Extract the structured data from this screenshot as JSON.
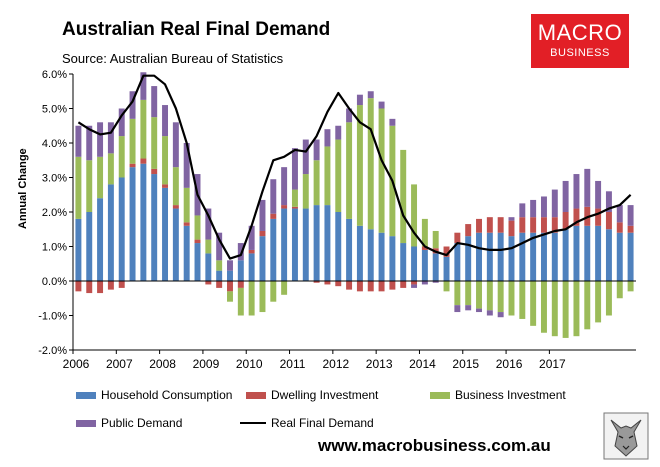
{
  "header": {
    "title": "Australian Real Final Demand",
    "subtitle": "Source: Australian Bureau of Statistics"
  },
  "logo": {
    "line1": "MACRO",
    "line2": "BUSINESS",
    "color": "#e21f26"
  },
  "footer": {
    "website": "www.macrobusiness.com.au"
  },
  "chart_data": {
    "type": "bar",
    "stacked": true,
    "title": "Australian Real Final Demand",
    "subtitle": "Source: Australian Bureau of Statistics",
    "xlabel": "",
    "ylabel": "Annual Change",
    "ylim": [
      -2.0,
      6.0
    ],
    "yticks": [
      "-2.0%",
      "-1.0%",
      "0.0%",
      "1.0%",
      "2.0%",
      "3.0%",
      "4.0%",
      "5.0%",
      "6.0%"
    ],
    "ytick_values": [
      -2,
      -1,
      0,
      1,
      2,
      3,
      4,
      5,
      6
    ],
    "xticks": [
      "2006",
      "2007",
      "2008",
      "2009",
      "2010",
      "2011",
      "2012",
      "2013",
      "2014",
      "2015",
      "2016",
      "2017"
    ],
    "x_start": "2006 Q1",
    "grid": false,
    "legend_position": "bottom",
    "colors": {
      "household": "#4f81bd",
      "dwelling": "#c0504d",
      "business": "#9bbb59",
      "public": "#8064a2",
      "total": "#000000"
    },
    "series": [
      {
        "name": "Household Consumption",
        "key": "household",
        "kind": "bar",
        "values": [
          1.8,
          2.0,
          2.4,
          2.8,
          3.0,
          3.3,
          3.4,
          3.1,
          2.7,
          2.1,
          1.6,
          1.1,
          0.8,
          0.3,
          0.3,
          0.6,
          0.8,
          1.3,
          1.8,
          2.1,
          2.1,
          2.1,
          2.2,
          2.2,
          2.0,
          1.8,
          1.6,
          1.5,
          1.4,
          1.3,
          1.1,
          1.0,
          0.9,
          0.8,
          0.7,
          1.1,
          1.3,
          1.4,
          1.4,
          1.4,
          1.3,
          1.4,
          1.4,
          1.4,
          1.4,
          1.5,
          1.6,
          1.6,
          1.6,
          1.5,
          1.4,
          1.4
        ]
      },
      {
        "name": "Dwelling Investment",
        "key": "dwelling",
        "kind": "bar",
        "values": [
          -0.3,
          -0.35,
          -0.35,
          -0.25,
          -0.2,
          0.1,
          0.15,
          0.15,
          0.1,
          0.1,
          0.1,
          0.1,
          -0.1,
          -0.2,
          -0.3,
          -0.2,
          0.1,
          0.15,
          0.15,
          0.1,
          0.05,
          0.0,
          -0.05,
          -0.1,
          -0.15,
          -0.25,
          -0.3,
          -0.3,
          -0.3,
          -0.25,
          -0.2,
          -0.1,
          0.1,
          0.15,
          0.3,
          0.3,
          0.35,
          0.4,
          0.45,
          0.45,
          0.45,
          0.45,
          0.45,
          0.45,
          0.45,
          0.5,
          0.5,
          0.55,
          0.5,
          0.5,
          0.3,
          0.2
        ]
      },
      {
        "name": "Business Investment",
        "key": "business",
        "kind": "bar",
        "values": [
          1.8,
          1.5,
          1.2,
          0.9,
          1.2,
          1.3,
          1.7,
          1.5,
          1.4,
          1.1,
          1.0,
          0.7,
          0.4,
          0.3,
          -0.3,
          -0.8,
          -1.0,
          -0.9,
          -0.6,
          -0.4,
          0.5,
          1.0,
          1.3,
          1.7,
          2.1,
          2.8,
          3.5,
          3.8,
          3.6,
          3.2,
          2.7,
          1.8,
          0.8,
          0.5,
          -0.3,
          -0.7,
          -0.7,
          -0.8,
          -0.85,
          -0.9,
          -1.0,
          -1.1,
          -1.3,
          -1.5,
          -1.6,
          -1.65,
          -1.6,
          -1.4,
          -1.2,
          -1.0,
          -0.5,
          -0.3
        ]
      },
      {
        "name": "Public Demand",
        "key": "public",
        "kind": "bar",
        "values": [
          0.9,
          1.0,
          1.0,
          0.9,
          0.8,
          0.8,
          0.8,
          0.9,
          0.9,
          1.3,
          1.3,
          1.2,
          0.9,
          0.8,
          0.3,
          0.5,
          0.7,
          0.9,
          1.0,
          1.1,
          1.2,
          1.0,
          0.6,
          0.5,
          0.4,
          0.4,
          0.3,
          0.2,
          0.2,
          0.2,
          0.0,
          -0.1,
          -0.1,
          -0.05,
          0.0,
          -0.2,
          -0.15,
          -0.1,
          -0.15,
          -0.15,
          0.1,
          0.4,
          0.5,
          0.6,
          0.8,
          0.9,
          1.0,
          1.1,
          0.8,
          0.6,
          0.5,
          0.6
        ]
      },
      {
        "name": "Real Final Demand",
        "key": "total",
        "kind": "line",
        "values": [
          4.6,
          4.4,
          4.25,
          4.3,
          4.8,
          5.2,
          5.95,
          5.95,
          5.7,
          5.0,
          4.0,
          2.5,
          1.9,
          1.2,
          0.65,
          0.75,
          1.6,
          2.6,
          3.5,
          3.6,
          3.8,
          3.75,
          4.2,
          4.9,
          5.45,
          5.0,
          4.6,
          4.4,
          3.5,
          2.9,
          1.9,
          1.4,
          1.0,
          0.85,
          0.75,
          1.1,
          1.05,
          0.95,
          0.9,
          0.9,
          0.95,
          1.1,
          1.25,
          1.35,
          1.45,
          1.5,
          1.7,
          1.85,
          1.95,
          2.1,
          2.2,
          2.5
        ]
      }
    ]
  }
}
